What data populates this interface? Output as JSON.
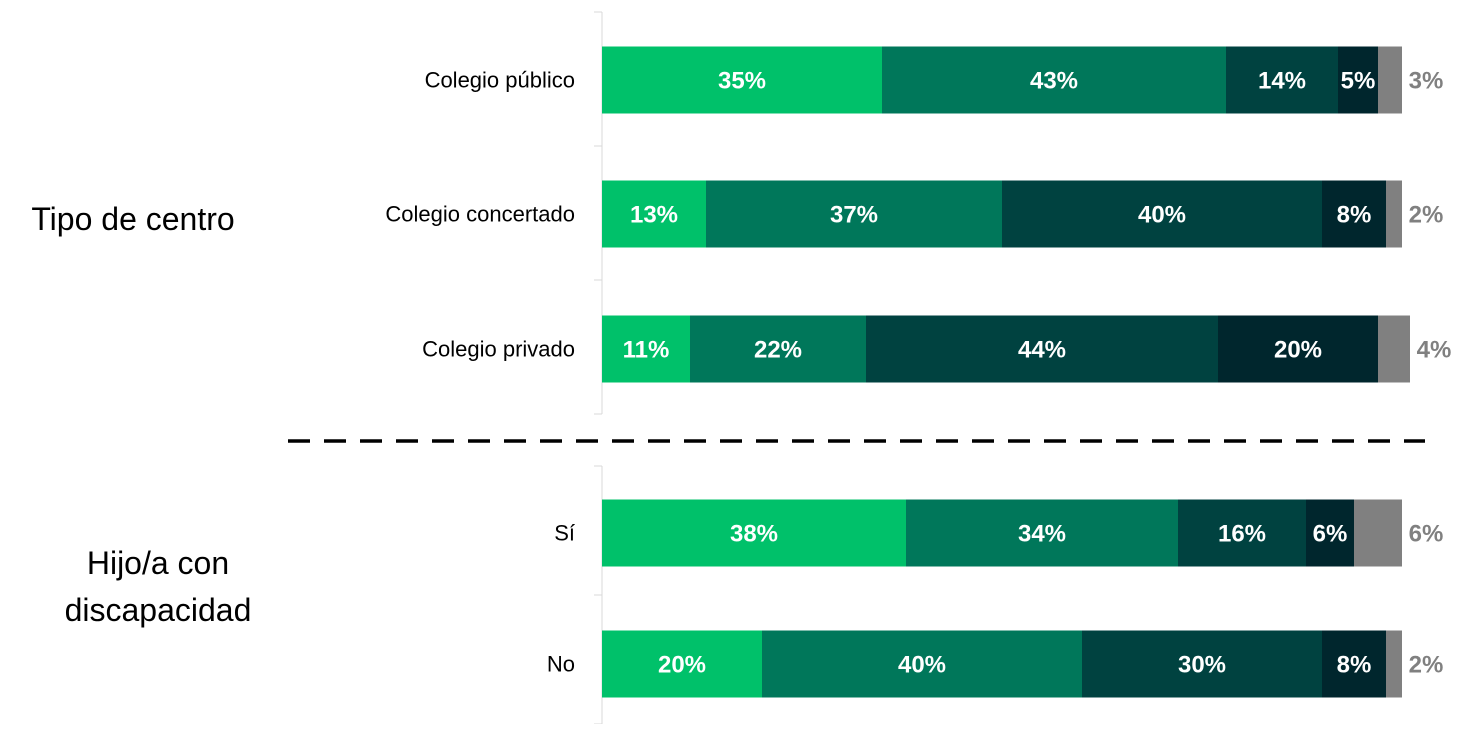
{
  "chart_data": {
    "type": "bar",
    "orientation": "horizontal",
    "stacked": true,
    "percent": true,
    "xlim": [
      0,
      100
    ],
    "legend": "none",
    "grid": false,
    "groups": [
      {
        "label": "Tipo de centro",
        "categories": [
          {
            "name": "Colegio público",
            "values": [
              35,
              43,
              14,
              5,
              3
            ],
            "labels": [
              "35%",
              "43%",
              "14%",
              "5%",
              "3%"
            ]
          },
          {
            "name": "Colegio concertado",
            "values": [
              13,
              37,
              40,
              8,
              2
            ],
            "labels": [
              "13%",
              "37%",
              "40%",
              "8%",
              "2%"
            ]
          },
          {
            "name": "Colegio privado",
            "values": [
              11,
              22,
              44,
              20,
              4
            ],
            "labels": [
              "11%",
              "22%",
              "44%",
              "20%",
              "4%"
            ]
          }
        ]
      },
      {
        "label": "Hijo/a con discapacidad",
        "label_lines": [
          "Hijo/a con",
          "discapacidad"
        ],
        "categories": [
          {
            "name": "Sí",
            "values": [
              38,
              34,
              16,
              6,
              6
            ],
            "labels": [
              "38%",
              "34%",
              "16%",
              "6%",
              "6%"
            ]
          },
          {
            "name": "No",
            "values": [
              20,
              40,
              30,
              8,
              2
            ],
            "labels": [
              "20%",
              "40%",
              "30%",
              "8%",
              "2%"
            ]
          }
        ]
      }
    ],
    "segment_colors": [
      "#00c16a",
      "#00775a",
      "#004240",
      "#00262d",
      "#808080"
    ],
    "label_color_inside": "#ffffff",
    "label_color_outside": "#808080"
  }
}
